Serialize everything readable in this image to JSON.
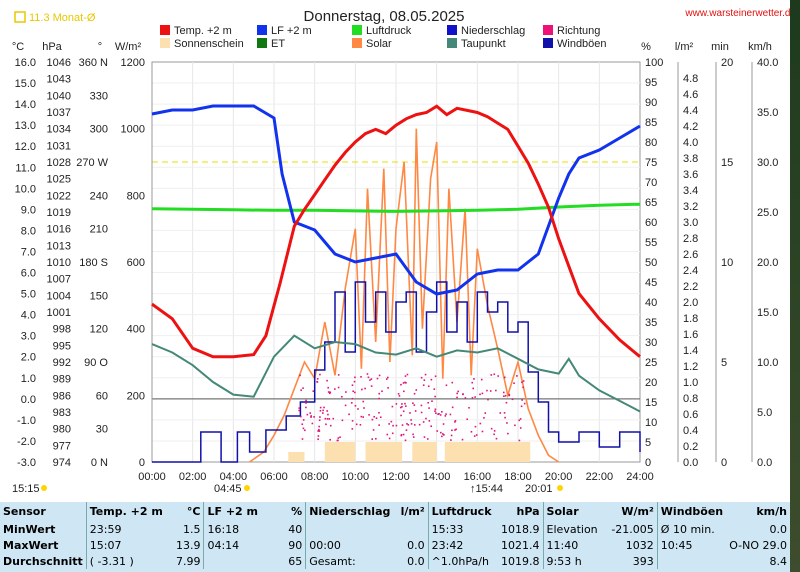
{
  "header": {
    "title": "Donnerstag, 08.05.2025",
    "badge": "11.3 Monat-Ø",
    "website": "www.warsteinerwetter.de"
  },
  "units": {
    "left": [
      "°C",
      "hPa",
      "°",
      "W/m²"
    ],
    "right": [
      "%",
      "l/m²",
      "min",
      "km/h"
    ]
  },
  "legend": [
    {
      "label": "Temp. +2 m",
      "color": "#ee1111"
    },
    {
      "label": "LF +2 m",
      "color": "#1133ee"
    },
    {
      "label": "Luftdruck",
      "color": "#22dd22"
    },
    {
      "label": "Niederschlag",
      "color": "#1111cc"
    },
    {
      "label": "Richtung",
      "color": "#ee1177"
    },
    {
      "label": "Sonnenschein",
      "color": "#fde0b0"
    },
    {
      "label": "ET",
      "color": "#117711"
    },
    {
      "label": "Solar",
      "color": "#ff8844"
    },
    {
      "label": "Taupunkt",
      "color": "#448877"
    },
    {
      "label": "Windböen",
      "color": "#1111aa"
    }
  ],
  "markers": {
    "left_time": "15:15",
    "sunrise": "04:45",
    "sunset": "20:01",
    "moon": "15:44"
  },
  "chart_data": {
    "type": "line",
    "x_ticks": [
      "00:00",
      "02:00",
      "04:00",
      "06:00",
      "08:00",
      "10:00",
      "12:00",
      "14:00",
      "16:00",
      "18:00",
      "20:00",
      "22:00",
      "24:00"
    ],
    "axes": {
      "temp_c": [
        "16.0",
        "15.0",
        "14.0",
        "13.0",
        "12.0",
        "11.0",
        "10.0",
        "9.0",
        "8.0",
        "7.0",
        "6.0",
        "5.0",
        "4.0",
        "3.0",
        "2.0",
        "1.0",
        "0.0",
        "-1.0",
        "-2.0",
        "-3.0"
      ],
      "pressure_hpa": [
        "1046",
        "1043",
        "1040",
        "1037",
        "1034",
        "1031",
        "1028",
        "1025",
        "1022",
        "1019",
        "1016",
        "1013",
        "1010",
        "1007",
        "1004",
        "1001",
        "998",
        "995",
        "992",
        "989",
        "986",
        "983",
        "980",
        "977",
        "974"
      ],
      "direction": [
        "360 N",
        "330",
        "300",
        "270 W",
        "240",
        "210",
        "180 S",
        "150",
        "120",
        "90 O",
        "60",
        "30",
        "0 N"
      ],
      "solar_wm2": [
        "1200",
        "1000",
        "800",
        "600",
        "400",
        "200",
        "0"
      ],
      "humidity_pct": [
        "100",
        "95",
        "90",
        "85",
        "80",
        "75",
        "70",
        "65",
        "60",
        "55",
        "50",
        "45",
        "40",
        "35",
        "30",
        "25",
        "20",
        "15",
        "10",
        "5",
        "0"
      ],
      "rain_lm2": [
        "4.8",
        "4.6",
        "4.4",
        "4.2",
        "4.0",
        "3.8",
        "3.6",
        "3.4",
        "3.2",
        "3.0",
        "2.8",
        "2.6",
        "2.4",
        "2.2",
        "2.0",
        "1.8",
        "1.6",
        "1.4",
        "1.2",
        "1.0",
        "0.8",
        "0.6",
        "0.4",
        "0.2",
        "0.0"
      ],
      "minutes": [
        "20",
        "15",
        "10",
        "5",
        "0"
      ],
      "wind_kmh": [
        "40.0",
        "35.0",
        "30.0",
        "25.0",
        "20.0",
        "15.0",
        "10.0",
        "5.0",
        "0.0"
      ]
    },
    "series": [
      {
        "name": "Temp. +2 m",
        "unit": "°C",
        "points": [
          [
            0,
            4.5
          ],
          [
            1,
            3.8
          ],
          [
            2,
            2.4
          ],
          [
            3,
            2.0
          ],
          [
            4,
            2.0
          ],
          [
            5,
            2.1
          ],
          [
            5.6,
            3.0
          ],
          [
            6.3,
            5.5
          ],
          [
            7,
            8.2
          ],
          [
            7.5,
            9.0
          ],
          [
            8,
            9.7
          ],
          [
            8.5,
            10.4
          ],
          [
            9,
            11.1
          ],
          [
            9.5,
            11.7
          ],
          [
            10,
            12.2
          ],
          [
            10.5,
            12.6
          ],
          [
            11,
            12.8
          ],
          [
            11.5,
            12.6
          ],
          [
            12,
            13.0
          ],
          [
            12.5,
            13.3
          ],
          [
            13,
            13.5
          ],
          [
            13.5,
            13.6
          ],
          [
            14,
            13.9
          ],
          [
            14.5,
            13.5
          ],
          [
            15,
            13.8
          ],
          [
            15.5,
            13.7
          ],
          [
            16,
            13.6
          ],
          [
            16.5,
            13.4
          ],
          [
            17,
            13.1
          ],
          [
            17.5,
            12.8
          ],
          [
            18,
            12.0
          ],
          [
            18.5,
            11.2
          ],
          [
            19,
            10.2
          ],
          [
            19.5,
            9.1
          ],
          [
            20,
            7.6
          ],
          [
            20.5,
            6.3
          ],
          [
            21,
            5.0
          ],
          [
            22,
            3.8
          ],
          [
            23,
            2.8
          ],
          [
            24,
            2.0
          ]
        ]
      },
      {
        "name": "LF +2 m",
        "unit": "%",
        "points": [
          [
            0,
            87
          ],
          [
            1,
            88
          ],
          [
            2,
            88
          ],
          [
            3,
            89
          ],
          [
            4,
            89
          ],
          [
            5,
            89
          ],
          [
            6,
            86
          ],
          [
            6.4,
            72
          ],
          [
            7,
            60
          ],
          [
            7.5,
            59
          ],
          [
            8,
            58
          ],
          [
            9,
            52
          ],
          [
            10,
            50
          ],
          [
            11,
            51
          ],
          [
            12,
            52
          ],
          [
            13,
            45
          ],
          [
            14,
            42
          ],
          [
            15,
            43
          ],
          [
            16,
            47
          ],
          [
            17,
            48
          ],
          [
            18,
            48
          ],
          [
            19,
            52
          ],
          [
            20,
            66
          ],
          [
            20.5,
            72
          ],
          [
            21,
            76
          ],
          [
            22,
            78
          ],
          [
            23,
            81
          ],
          [
            24,
            84
          ]
        ]
      },
      {
        "name": "Luftdruck",
        "unit": "hPa",
        "points": [
          [
            0,
            1019.6
          ],
          [
            4,
            1019.4
          ],
          [
            6,
            1019.3
          ],
          [
            8,
            1019.3
          ],
          [
            10,
            1019.2
          ],
          [
            12,
            1019.1
          ],
          [
            14,
            1019.2
          ],
          [
            16,
            1019.3
          ],
          [
            18,
            1019.5
          ],
          [
            20,
            1019.9
          ],
          [
            22,
            1020.2
          ],
          [
            24,
            1020.4
          ]
        ]
      },
      {
        "name": "Taupunkt",
        "unit": "°C",
        "points": [
          [
            0,
            2.6
          ],
          [
            1,
            2.2
          ],
          [
            2,
            1.6
          ],
          [
            3,
            0.8
          ],
          [
            4,
            0.2
          ],
          [
            5,
            0.1
          ],
          [
            6,
            2.0
          ],
          [
            7,
            3.0
          ],
          [
            8,
            2.4
          ],
          [
            9,
            2.7
          ],
          [
            10,
            2.6
          ],
          [
            11,
            2.2
          ],
          [
            12,
            2.1
          ],
          [
            13,
            2.4
          ],
          [
            14,
            2.0
          ],
          [
            15,
            2.3
          ],
          [
            16,
            2.2
          ],
          [
            17,
            2.4
          ],
          [
            18,
            1.9
          ],
          [
            19,
            1.4
          ],
          [
            20,
            1.2
          ],
          [
            20.5,
            1.9
          ],
          [
            21,
            1.1
          ],
          [
            22,
            0.4
          ],
          [
            23,
            -0.1
          ],
          [
            24,
            -0.6
          ]
        ]
      },
      {
        "name": "Solar",
        "unit": "W/m²",
        "points": [
          [
            4.8,
            0
          ],
          [
            5.5,
            30
          ],
          [
            6,
            80
          ],
          [
            6.5,
            140
          ],
          [
            7,
            220
          ],
          [
            7.5,
            300
          ],
          [
            8,
            250
          ],
          [
            8.5,
            420
          ],
          [
            9,
            260
          ],
          [
            9.5,
            520
          ],
          [
            10,
            700
          ],
          [
            10.3,
            280
          ],
          [
            10.6,
            820
          ],
          [
            11,
            360
          ],
          [
            11.4,
            880
          ],
          [
            11.7,
            300
          ],
          [
            12,
            700
          ],
          [
            12.4,
            900
          ],
          [
            12.8,
            320
          ],
          [
            13,
            1000
          ],
          [
            13.3,
            400
          ],
          [
            13.7,
            850
          ],
          [
            14,
            960
          ],
          [
            14.3,
            250
          ],
          [
            14.6,
            820
          ],
          [
            15,
            420
          ],
          [
            15.4,
            760
          ],
          [
            15.7,
            260
          ],
          [
            16,
            640
          ],
          [
            16.5,
            470
          ],
          [
            17,
            340
          ],
          [
            17.5,
            200
          ],
          [
            18,
            300
          ],
          [
            18.5,
            160
          ],
          [
            19,
            80
          ],
          [
            19.5,
            20
          ],
          [
            20,
            0
          ]
        ]
      },
      {
        "name": "Windböen",
        "unit": "km/h",
        "points": [
          [
            0,
            0
          ],
          [
            2.3,
            0
          ],
          [
            2.4,
            3
          ],
          [
            3.2,
            3
          ],
          [
            3.4,
            0
          ],
          [
            4.2,
            3
          ],
          [
            4.8,
            1
          ],
          [
            5.6,
            3.2
          ],
          [
            6.6,
            4.6
          ],
          [
            7.3,
            6
          ],
          [
            8,
            9.2
          ],
          [
            8.5,
            12
          ],
          [
            9,
            17
          ],
          [
            9.5,
            11
          ],
          [
            10,
            18
          ],
          [
            10.5,
            14
          ],
          [
            11,
            17
          ],
          [
            11.5,
            13
          ],
          [
            12,
            16
          ],
          [
            12.5,
            17
          ],
          [
            13,
            11
          ],
          [
            13.5,
            15
          ],
          [
            14,
            18
          ],
          [
            14.5,
            13
          ],
          [
            15,
            16
          ],
          [
            15.5,
            12
          ],
          [
            16,
            17
          ],
          [
            16.5,
            15
          ],
          [
            17,
            16
          ],
          [
            17.5,
            13
          ],
          [
            18,
            14
          ],
          [
            18.5,
            9
          ],
          [
            19,
            6
          ],
          [
            19.5,
            3
          ],
          [
            20,
            2
          ],
          [
            21,
            3
          ],
          [
            22,
            1.5
          ],
          [
            23,
            3
          ],
          [
            24,
            1
          ]
        ]
      }
    ],
    "sunshine_minutes": [
      {
        "from": 6.7,
        "to": 7.5,
        "min": 0.5
      },
      {
        "from": 8.5,
        "to": 10.0,
        "min": 1.0
      },
      {
        "from": 10.5,
        "to": 12.3,
        "min": 1.0
      },
      {
        "from": 12.8,
        "to": 14.0,
        "min": 1.0
      },
      {
        "from": 14.4,
        "to": 18.6,
        "min": 1.0
      }
    ]
  },
  "stats": {
    "header": [
      [
        "Sensor",
        "Temp. +2 m",
        "°C"
      ],
      [
        "LF +2 m",
        "%"
      ],
      [
        "Niederschlag",
        "l/m²"
      ],
      [
        "Luftdruck",
        "hPa"
      ],
      [
        "Solar",
        "W/m²"
      ],
      [
        "Windböen",
        "km/h"
      ]
    ],
    "rows": [
      [
        "MinWert",
        "23:59",
        "1.5",
        "16:18",
        "40",
        "",
        "",
        "15:33",
        "1018.9",
        "Elevation",
        "-21.005",
        "Ø 10 min.",
        "0.0"
      ],
      [
        "MaxWert",
        "15:07",
        "13.9",
        "04:14",
        "90",
        "00:00",
        "0.0",
        "23:42",
        "1021.4",
        "11:40",
        "1032",
        "10:45",
        "O-NO 29.0"
      ],
      [
        "Durchschnitt",
        "( -3.31 )",
        "7.99",
        "",
        "65",
        "Gesamt:",
        "0.0",
        "^1.0hPa/h",
        "1019.8",
        "9:53 h",
        "393",
        "",
        "8.4"
      ]
    ]
  }
}
